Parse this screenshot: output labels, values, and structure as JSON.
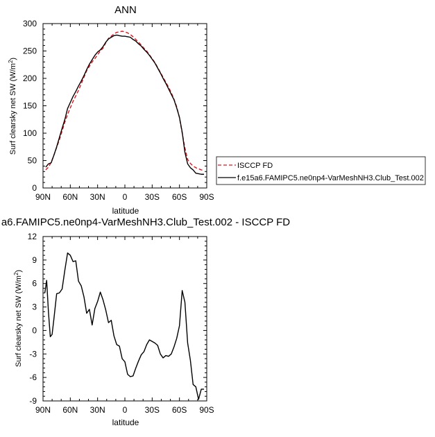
{
  "chart_data": [
    {
      "type": "line",
      "title": "ANN",
      "xlabel": "latitude",
      "ylabel": "Surf clearsky net SW (W/m",
      "ylabel_sup": "2",
      "ylabel_close": ")",
      "xlim": [
        90,
        -90
      ],
      "ylim": [
        0,
        300
      ],
      "xticks": [
        90,
        60,
        30,
        0,
        -30,
        -60,
        -90
      ],
      "xtick_labels": [
        "90N",
        "60N",
        "30N",
        "0",
        "30S",
        "60S",
        "90S"
      ],
      "yticks": [
        0,
        50,
        100,
        150,
        200,
        250,
        300
      ],
      "ytick_labels": [
        "0",
        "50",
        "100",
        "150",
        "200",
        "250",
        "300"
      ],
      "legend": "right",
      "series": [
        {
          "name": "ISCCP FD",
          "color": "#e8101a",
          "dash": "dashed",
          "x": [
            87,
            84,
            81,
            78,
            75,
            72,
            69,
            66,
            63,
            60,
            57,
            54,
            51,
            48,
            45,
            42,
            39,
            36,
            33,
            30,
            27,
            24,
            21,
            18,
            15,
            12,
            9,
            6,
            3,
            0,
            -3,
            -6,
            -9,
            -12,
            -15,
            -18,
            -21,
            -24,
            -27,
            -30,
            -33,
            -36,
            -39,
            -42,
            -45,
            -48,
            -51,
            -54,
            -57,
            -60,
            -63,
            -66,
            -69,
            -72,
            -75,
            -78,
            -81,
            -84,
            -87
          ],
          "y": [
            33,
            38,
            47,
            60,
            74,
            88,
            104,
            120,
            134,
            146,
            158,
            168,
            178,
            190,
            202,
            214,
            222,
            230,
            236,
            243,
            250,
            255,
            265,
            273,
            277,
            281,
            284,
            285,
            286,
            285,
            283,
            280,
            276,
            271,
            266,
            261,
            255,
            250,
            243,
            236,
            229,
            220,
            211,
            202,
            193,
            184,
            174,
            162,
            148,
            128,
            100,
            73,
            52,
            45,
            40,
            37,
            35,
            33,
            32
          ]
        },
        {
          "name": "f.e15a6.FAMIPC5.ne0np4-VarMeshNH3.Club_Test.002",
          "color": "#000000",
          "dash": "solid",
          "x": [
            87,
            84,
            81,
            78,
            75,
            72,
            69,
            66,
            63,
            60,
            57,
            54,
            51,
            48,
            45,
            42,
            39,
            36,
            33,
            30,
            27,
            24,
            21,
            18,
            15,
            12,
            9,
            6,
            3,
            0,
            -3,
            -6,
            -9,
            -12,
            -15,
            -18,
            -21,
            -24,
            -27,
            -30,
            -33,
            -36,
            -39,
            -42,
            -45,
            -48,
            -51,
            -54,
            -57,
            -60,
            -63,
            -66,
            -69,
            -72,
            -75,
            -78,
            -81,
            -84,
            -87
          ],
          "y": [
            38,
            44,
            46,
            60,
            75,
            92,
            109,
            125,
            145,
            156,
            167,
            176,
            186,
            195,
            205,
            216,
            226,
            234,
            242,
            248,
            252,
            258,
            266,
            272,
            275,
            278,
            279,
            278,
            277,
            277,
            276,
            275,
            271,
            268,
            263,
            259,
            253,
            248,
            242,
            235,
            228,
            219,
            210,
            200,
            191,
            181,
            171,
            161,
            146,
            129,
            102,
            65,
            44,
            37,
            33,
            27,
            26,
            25,
            25
          ]
        }
      ]
    },
    {
      "type": "line",
      "title": "a6.FAMIPC5.ne0np4-VarMeshNH3.Club_Test.002 - ISCCP FD",
      "xlabel": "latitude",
      "ylabel": "Surf clearsky net SW (W/m",
      "ylabel_sup": "2",
      "ylabel_close": ")",
      "xlim": [
        90,
        -90
      ],
      "ylim": [
        -9,
        12
      ],
      "xticks": [
        90,
        60,
        30,
        0,
        -30,
        -60,
        -90
      ],
      "xtick_labels": [
        "90N",
        "60N",
        "30N",
        "0",
        "30S",
        "60S",
        "90S"
      ],
      "yticks": [
        -9,
        -6,
        -3,
        0,
        3,
        6,
        9,
        12
      ],
      "ytick_labels": [
        "-9",
        "-6",
        "-3",
        "0",
        "3",
        "6",
        "9",
        "12"
      ],
      "series": [
        {
          "color": "#000000",
          "dash": "solid",
          "x": [
            88,
            86,
            84,
            82,
            80,
            78,
            75,
            72,
            69,
            66,
            63,
            60,
            57,
            54,
            51,
            48,
            45,
            42,
            39,
            36,
            33,
            30,
            27,
            24,
            21,
            18,
            15,
            12,
            9,
            6,
            3,
            0,
            -3,
            -6,
            -9,
            -12,
            -15,
            -18,
            -21,
            -24,
            -27,
            -30,
            -33,
            -36,
            -39,
            -42,
            -45,
            -48,
            -51,
            -54,
            -57,
            -60,
            -63,
            -66,
            -69,
            -72,
            -75,
            -78,
            -81,
            -84,
            -87
          ],
          "y": [
            4.8,
            6.4,
            2.3,
            -0.8,
            -0.5,
            1.5,
            4.7,
            4.8,
            5.3,
            7.7,
            9.9,
            9.6,
            8.8,
            8.9,
            6.3,
            5.7,
            4.3,
            2.2,
            2.7,
            0.7,
            2.8,
            3.7,
            4.9,
            3.9,
            2.6,
            1.0,
            1.3,
            -0.7,
            -1.8,
            -2.0,
            -3.6,
            -4.0,
            -5.6,
            -5.9,
            -5.8,
            -4.8,
            -3.9,
            -3.1,
            -2.7,
            -1.8,
            -1.2,
            -1.4,
            -1.6,
            -1.9,
            -3.0,
            -3.5,
            -3.2,
            -3.3,
            -3.0,
            -2.1,
            -1.0,
            0.6,
            5.1,
            3.6,
            -1.6,
            -3.8,
            -6.9,
            -7.2,
            -8.8,
            -7.5,
            -7.5
          ]
        }
      ]
    }
  ]
}
